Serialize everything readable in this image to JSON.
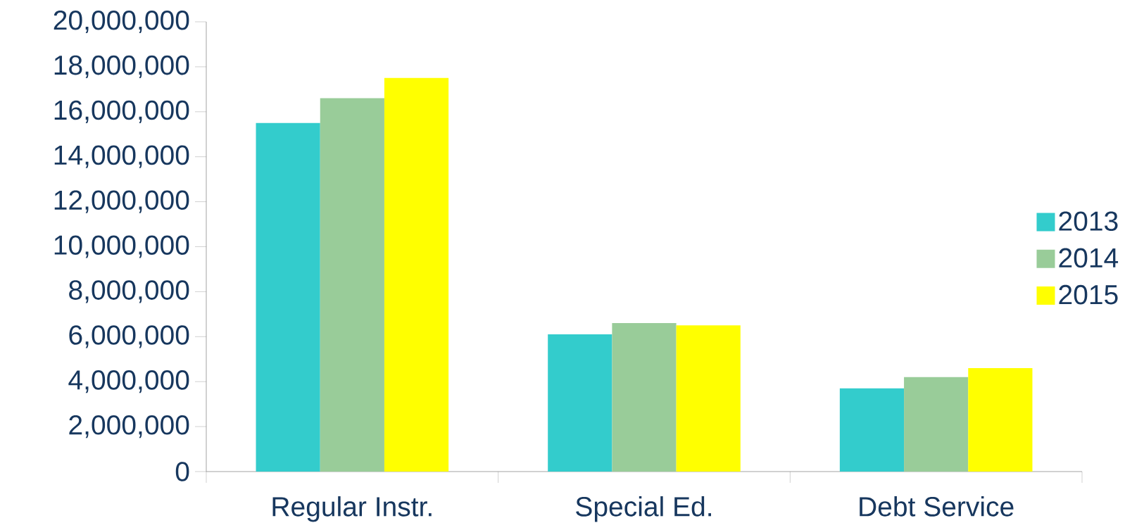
{
  "chart_data": {
    "type": "bar",
    "categories": [
      "Regular Instr.",
      "Special Ed.",
      "Debt Service"
    ],
    "series": [
      {
        "name": "2013",
        "color": "#33cccc",
        "values": [
          15500000,
          6100000,
          3700000
        ]
      },
      {
        "name": "2014",
        "color": "#99cc99",
        "values": [
          16600000,
          6600000,
          4200000
        ]
      },
      {
        "name": "2015",
        "color": "#ffff00",
        "values": [
          17500000,
          6500000,
          4600000
        ]
      }
    ],
    "ylim": [
      0,
      20000000
    ],
    "yticks": [
      0,
      {
        "value": 2000000,
        "label": "2,000,000"
      },
      {
        "value": 4000000,
        "label": "4,000,000"
      },
      {
        "value": 6000000,
        "label": "6,000,000"
      },
      {
        "value": 8000000,
        "label": "8,000,000"
      },
      {
        "value": 10000000,
        "label": "10,000,000"
      },
      {
        "value": 12000000,
        "label": "12,000,000"
      },
      {
        "value": 14000000,
        "label": "14,000,000"
      },
      {
        "value": 16000000,
        "label": "16,000,000"
      },
      {
        "value": 18000000,
        "label": "18,000,000"
      },
      {
        "value": 20000000,
        "label": "20,000,000"
      }
    ],
    "legend": "right",
    "grid": false
  }
}
